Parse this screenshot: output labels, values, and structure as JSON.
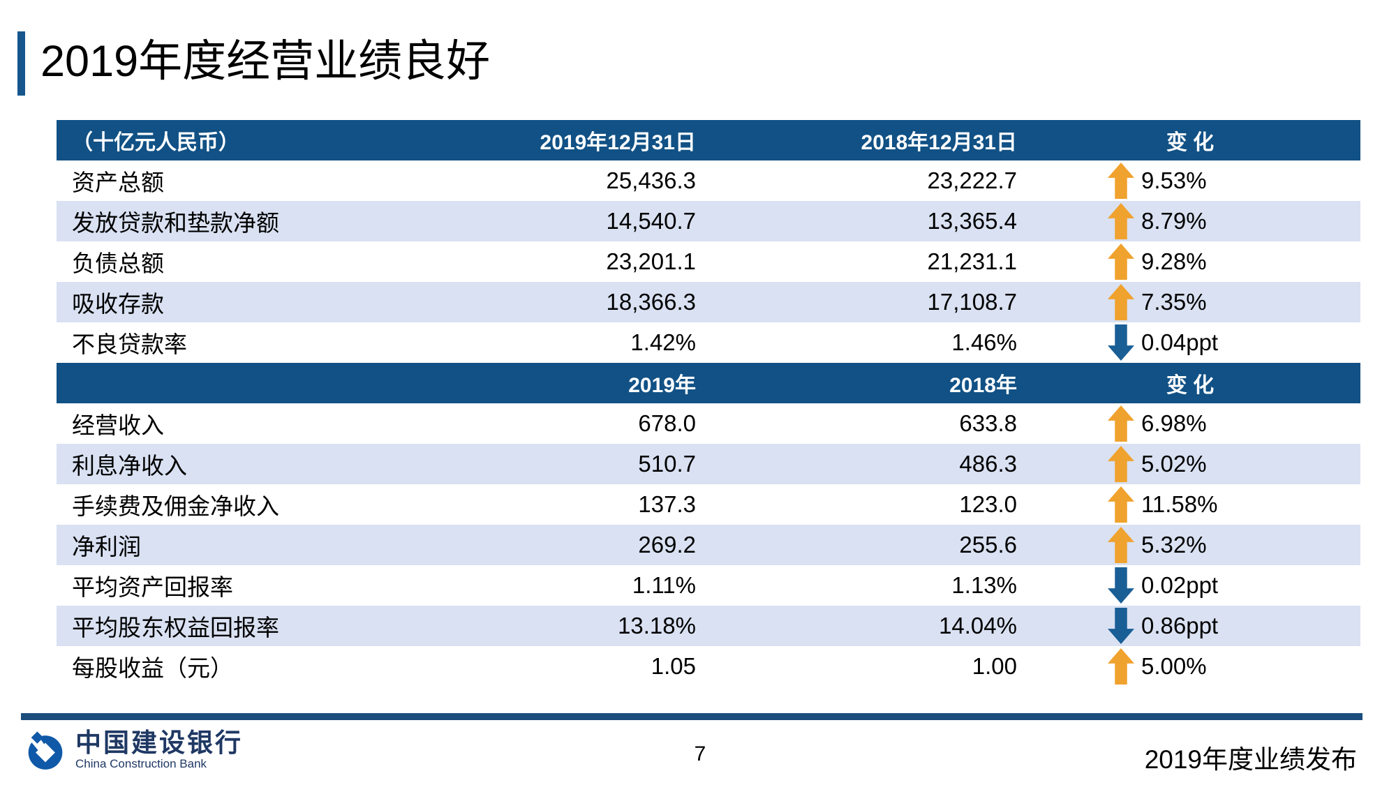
{
  "title": "2019年度经营业绩良好",
  "table": {
    "s1": {
      "header": {
        "col1": "（十亿元人民币）",
        "col2": "2019年12月31日",
        "col3": "2018年12月31日",
        "col4": "变  化"
      },
      "rows": [
        {
          "label": "资产总额",
          "v2019": "25,436.3",
          "v2018": "23,222.7",
          "direction": "up",
          "change": "9.53%"
        },
        {
          "label": "发放贷款和垫款净额",
          "v2019": "14,540.7",
          "v2018": "13,365.4",
          "direction": "up",
          "change": "8.79%"
        },
        {
          "label": "负债总额",
          "v2019": "23,201.1",
          "v2018": "21,231.1",
          "direction": "up",
          "change": "9.28%"
        },
        {
          "label": "吸收存款",
          "v2019": "18,366.3",
          "v2018": "17,108.7",
          "direction": "up",
          "change": "7.35%"
        },
        {
          "label": "不良贷款率",
          "v2019": "1.42%",
          "v2018": "1.46%",
          "direction": "down",
          "change": "0.04ppt"
        }
      ]
    },
    "s2": {
      "header": {
        "col1": "",
        "col2": "2019年",
        "col3": "2018年",
        "col4": "变  化"
      },
      "rows": [
        {
          "label": "经营收入",
          "v2019": "678.0",
          "v2018": "633.8",
          "direction": "up",
          "change": "6.98%"
        },
        {
          "label": "利息净收入",
          "v2019": "510.7",
          "v2018": "486.3",
          "direction": "up",
          "change": "5.02%"
        },
        {
          "label": "手续费及佣金净收入",
          "v2019": "137.3",
          "v2018": "123.0",
          "direction": "up",
          "change": "11.58%"
        },
        {
          "label": "净利润",
          "v2019": "269.2",
          "v2018": "255.6",
          "direction": "up",
          "change": "5.32%"
        },
        {
          "label": "平均资产回报率",
          "v2019": "1.11%",
          "v2018": "1.13%",
          "direction": "down",
          "change": "0.02ppt"
        },
        {
          "label": "平均股东权益回报率",
          "v2019": "13.18%",
          "v2018": "14.04%",
          "direction": "down",
          "change": "0.86ppt"
        },
        {
          "label": "每股收益（元）",
          "v2019": "1.05",
          "v2018": "1.00",
          "direction": "up",
          "change": "5.00%"
        }
      ]
    }
  },
  "footer": {
    "logo_cn": "中国建设银行",
    "logo_en": "China Construction Bank",
    "page_number": "7",
    "right_text": "2019年度业绩发布"
  },
  "colors": {
    "header_bg": "#115185",
    "row_stripe": "#D9E1F2",
    "arrow_up_orange": "#F0A22E",
    "arrow_down_blue": "#1A5E96",
    "title_accent": "#17568C",
    "footer_line": "#1B4E7D",
    "logo_blue": "#1059A8"
  }
}
